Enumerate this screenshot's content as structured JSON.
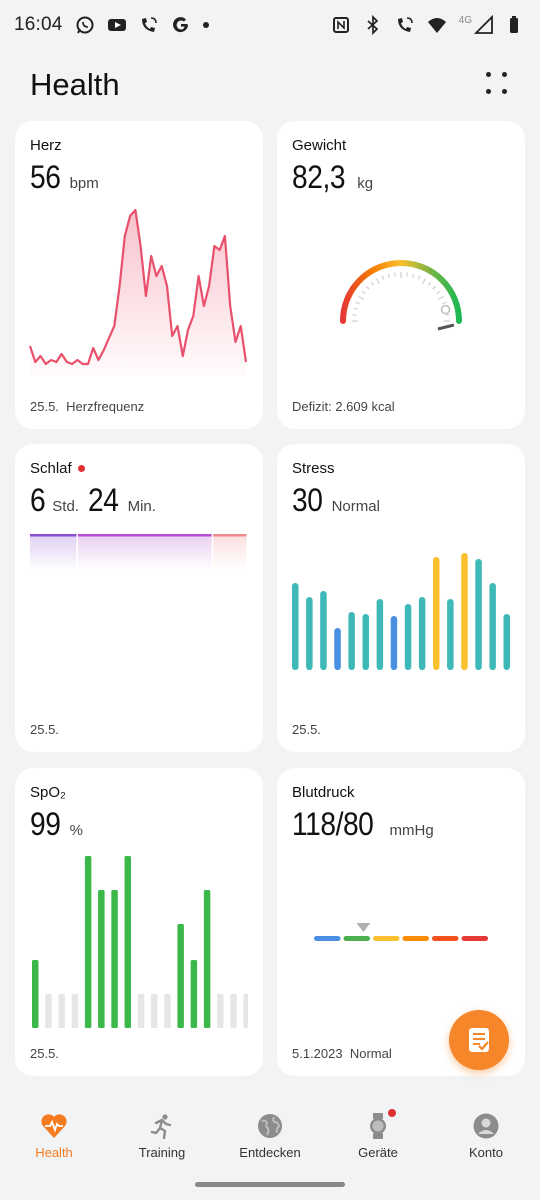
{
  "status_bar": {
    "time": "16:04",
    "left_icons": [
      "whatsapp-icon",
      "youtube-icon",
      "wifi-call-icon",
      "google-icon",
      "dot"
    ],
    "right_icons": [
      "nfc-icon",
      "bluetooth-icon",
      "wifi-call-icon",
      "wifi-icon",
      "signal-icon",
      "battery-icon"
    ],
    "network": "4G"
  },
  "header": {
    "title": "Health",
    "menu_icon": "more-dots-icon"
  },
  "cards": {
    "heart": {
      "title": "Herz",
      "value": "56",
      "unit": "bpm",
      "footer": "25.5.  Herzfrequenz",
      "color": "#e8506c",
      "chart_data": {
        "type": "area",
        "values": [
          10,
          2,
          5,
          1,
          3,
          2,
          6,
          2,
          1,
          3,
          1,
          1,
          9,
          3,
          8,
          14,
          20,
          40,
          65,
          75,
          78,
          60,
          35,
          55,
          45,
          50,
          40,
          15,
          20,
          5,
          18,
          25,
          45,
          30,
          40,
          60,
          58,
          65,
          30,
          12,
          20,
          2
        ]
      }
    },
    "weight": {
      "title": "Gewicht",
      "value": "82,3",
      "unit": "kg",
      "footer": "Defizit: 2.609 kcal",
      "gauge_colors": [
        "#e53935",
        "#f57c00",
        "#fbc02d",
        "#7cb342",
        "#1db954"
      ],
      "gauge_level": 0.92
    },
    "sleep": {
      "title": "Schlaf",
      "has_dot": true,
      "hours": "6",
      "hours_unit": "Std.",
      "minutes": "24",
      "minutes_unit": "Min.",
      "footer": "25.5.",
      "segments": [
        {
          "color": "#8a4fd1",
          "fraction": 0.22
        },
        {
          "color": "#b84fd1",
          "fraction": 0.62
        },
        {
          "color": "#f08a8a",
          "fraction": 0.16
        }
      ]
    },
    "stress": {
      "title": "Stress",
      "value": "30",
      "unit": "Normal",
      "footer": "25.5.",
      "chart_data": {
        "type": "bar",
        "values": [
          87,
          73,
          79,
          42,
          58,
          56,
          71,
          54,
          66,
          73,
          113,
          71,
          117,
          111,
          87,
          56
        ],
        "colors": [
          "#3fb8b8",
          "#3fb8b8",
          "#3fb8b8",
          "#4a90e2",
          "#3fb8b8",
          "#3fb8b8",
          "#3fb8b8",
          "#4a90e2",
          "#3fb8b8",
          "#3fb8b8",
          "#fbc02d",
          "#3fb8b8",
          "#fbc02d",
          "#3fb8b8",
          "#3fb8b8",
          "#3fb8b8"
        ]
      }
    },
    "spo2": {
      "title": "SpO₂",
      "value": "99",
      "unit": "%",
      "footer": "25.5.",
      "chart_data": {
        "type": "bar",
        "values": [
          68,
          34,
          34,
          34,
          172,
          138,
          138,
          172,
          34,
          34,
          34,
          104,
          68,
          138,
          34,
          34,
          34
        ],
        "active": [
          true,
          false,
          false,
          false,
          true,
          true,
          true,
          true,
          false,
          false,
          false,
          true,
          true,
          true,
          false,
          false,
          false
        ],
        "colors": {
          "active": "#3cb84a",
          "inactive": "#e6e6e6"
        }
      }
    },
    "bp": {
      "title": "Blutdruck",
      "value": "118/80",
      "unit": "mmHg",
      "footer": "5.1.2023  Normal",
      "scale_colors": [
        "#4a90e2",
        "#4caf50",
        "#fbc02d",
        "#fb8c00",
        "#f4511e",
        "#e53935"
      ],
      "marker_index": 1
    }
  },
  "nav": {
    "items": [
      {
        "label": "Health",
        "icon": "heart-icon",
        "active": true
      },
      {
        "label": "Training",
        "icon": "run-icon",
        "active": false
      },
      {
        "label": "Entdecken",
        "icon": "globe-icon",
        "active": false
      },
      {
        "label": "Geräte",
        "icon": "watch-icon",
        "active": false,
        "badge": true
      },
      {
        "label": "Konto",
        "icon": "account-icon",
        "active": false
      }
    ]
  },
  "fab_icon": "notes-icon"
}
